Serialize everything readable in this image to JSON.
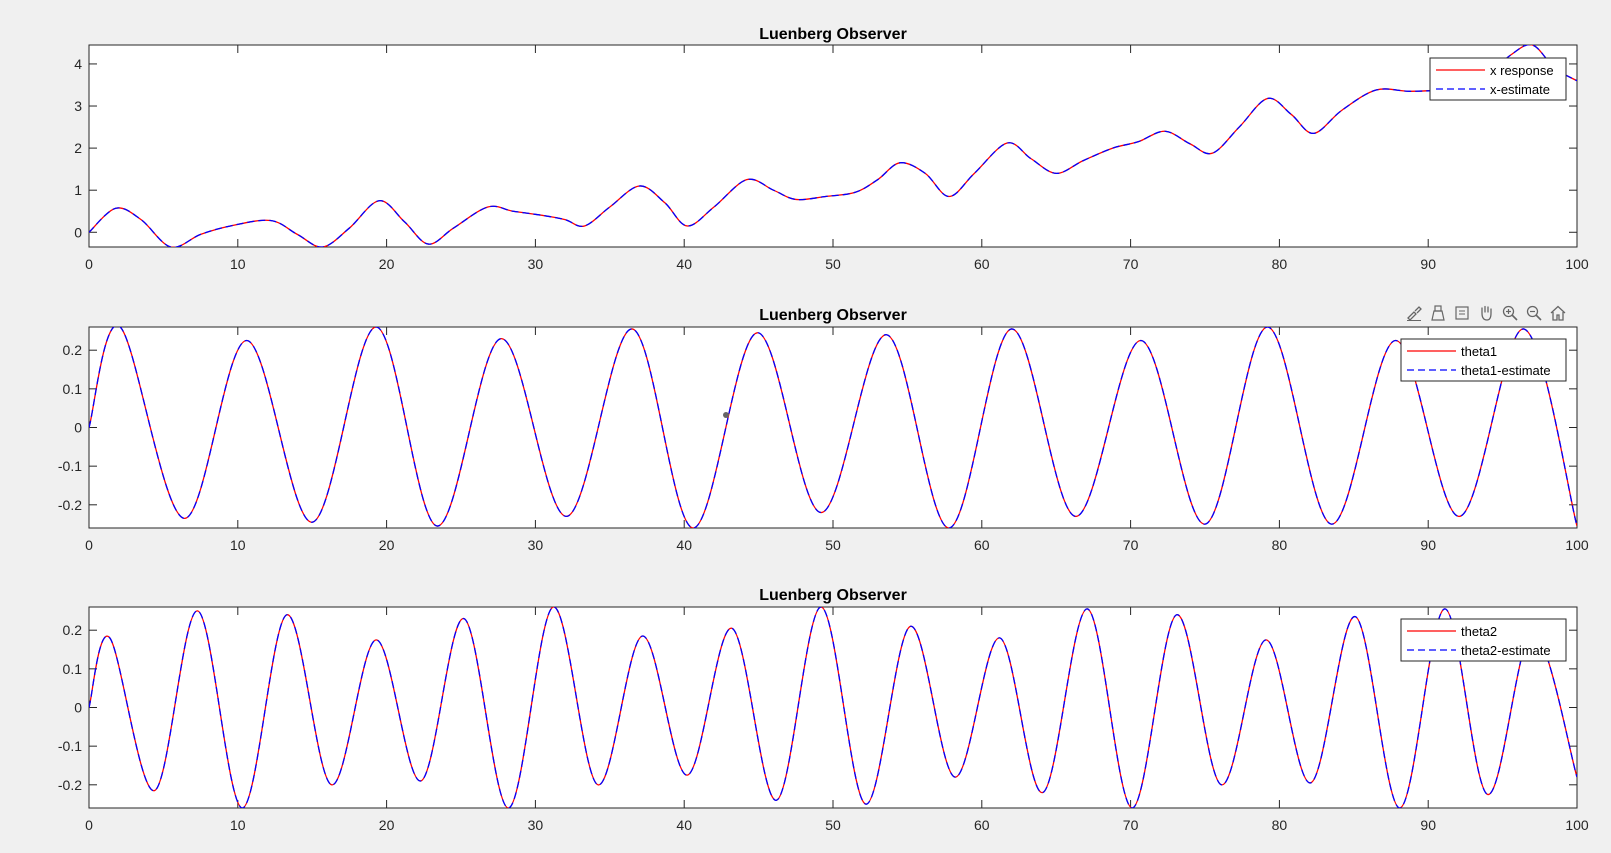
{
  "chart_data": [
    {
      "type": "line",
      "title": "Luenberg Observer",
      "xlim": [
        0,
        100
      ],
      "ylim": [
        -0.35,
        4.45
      ],
      "xticks": [
        0,
        10,
        20,
        30,
        40,
        50,
        60,
        70,
        80,
        90,
        100
      ],
      "yticks": [
        0,
        1,
        2,
        3,
        4
      ],
      "ytick_labels": [
        "0",
        "1",
        "2",
        "3",
        "4"
      ],
      "legend_position": "top-right",
      "grid": false,
      "series": [
        {
          "name": "x response",
          "color": "#ff0000",
          "style": "solid",
          "x": [
            0,
            1.8,
            3.5,
            5.5,
            7.5,
            9.5,
            12.2,
            14,
            15.7,
            17.5,
            19.5,
            21.2,
            22.8,
            24.5,
            26.8,
            28.5,
            30.5,
            32,
            33.3,
            35,
            37,
            38.7,
            40.2,
            42,
            44.2,
            46,
            47.5,
            49.5,
            51.5,
            53,
            54.5,
            56.2,
            57.8,
            59.5,
            61.7,
            63.3,
            65,
            66.8,
            68.8,
            70.5,
            72.3,
            74,
            75.5,
            77.3,
            79.2,
            80.8,
            82.3,
            84.2,
            86.5,
            88.8,
            91.2,
            93.5,
            95.5,
            97,
            98.5,
            100
          ],
          "y": [
            0,
            0.57,
            0.3,
            -0.35,
            -0.05,
            0.15,
            0.28,
            -0.05,
            -0.35,
            0.1,
            0.75,
            0.25,
            -0.28,
            0.1,
            0.6,
            0.5,
            0.4,
            0.3,
            0.15,
            0.6,
            1.1,
            0.7,
            0.15,
            0.6,
            1.25,
            1.0,
            0.78,
            0.85,
            0.95,
            1.25,
            1.65,
            1.4,
            0.85,
            1.4,
            2.12,
            1.75,
            1.4,
            1.7,
            2.0,
            2.15,
            2.4,
            2.1,
            1.88,
            2.5,
            3.18,
            2.8,
            2.35,
            2.9,
            3.38,
            3.35,
            3.4,
            3.6,
            4.2,
            4.45,
            3.9,
            3.6
          ]
        },
        {
          "name": "x-estimate",
          "color": "#0000ff",
          "style": "dashed",
          "x": [
            0,
            1.8,
            3.5,
            5.5,
            7.5,
            9.5,
            12.2,
            14,
            15.7,
            17.5,
            19.5,
            21.2,
            22.8,
            24.5,
            26.8,
            28.5,
            30.5,
            32,
            33.3,
            35,
            37,
            38.7,
            40.2,
            42,
            44.2,
            46,
            47.5,
            49.5,
            51.5,
            53,
            54.5,
            56.2,
            57.8,
            59.5,
            61.7,
            63.3,
            65,
            66.8,
            68.8,
            70.5,
            72.3,
            74,
            75.5,
            77.3,
            79.2,
            80.8,
            82.3,
            84.2,
            86.5,
            88.8,
            91.2,
            93.5,
            95.5,
            97,
            98.5,
            100
          ],
          "y": [
            0,
            0.57,
            0.3,
            -0.35,
            -0.05,
            0.15,
            0.28,
            -0.05,
            -0.35,
            0.1,
            0.75,
            0.25,
            -0.28,
            0.1,
            0.6,
            0.5,
            0.4,
            0.3,
            0.15,
            0.6,
            1.1,
            0.7,
            0.15,
            0.6,
            1.25,
            1.0,
            0.78,
            0.85,
            0.95,
            1.25,
            1.65,
            1.4,
            0.85,
            1.4,
            2.12,
            1.75,
            1.4,
            1.7,
            2.0,
            2.15,
            2.4,
            2.1,
            1.88,
            2.5,
            3.18,
            2.8,
            2.35,
            2.9,
            3.38,
            3.35,
            3.4,
            3.6,
            4.2,
            4.45,
            3.9,
            3.6
          ]
        }
      ]
    },
    {
      "type": "line",
      "title": "Luenberg Observer",
      "xlim": [
        0,
        100
      ],
      "ylim": [
        -0.26,
        0.26
      ],
      "xticks": [
        0,
        10,
        20,
        30,
        40,
        50,
        60,
        70,
        80,
        90,
        100
      ],
      "yticks": [
        -0.2,
        -0.1,
        0,
        0.1,
        0.2
      ],
      "ytick_labels": [
        "-0.2",
        "-0.1",
        "0",
        "0.1",
        "0.2"
      ],
      "legend_position": "top-right",
      "grid": false,
      "series": [
        {
          "name": "theta1",
          "color": "#ff0000",
          "style": "solid",
          "x": [
            0,
            2.1,
            6.4,
            10.6,
            15.0,
            19.3,
            23.4,
            27.7,
            32.1,
            36.5,
            40.6,
            44.9,
            49.2,
            53.6,
            57.8,
            62.0,
            66.3,
            70.7,
            75.0,
            79.2,
            83.5,
            87.8,
            92.1,
            96.4,
            100
          ],
          "y": [
            0,
            0.26,
            -0.235,
            0.225,
            -0.245,
            0.26,
            -0.255,
            0.23,
            -0.23,
            0.255,
            -0.26,
            0.245,
            -0.22,
            0.24,
            -0.26,
            0.255,
            -0.23,
            0.225,
            -0.25,
            0.26,
            -0.25,
            0.225,
            -0.23,
            0.255,
            -0.255
          ]
        },
        {
          "name": "theta1-estimate",
          "color": "#0000ff",
          "style": "dashed",
          "x": [
            0,
            2.1,
            6.4,
            10.6,
            15.0,
            19.3,
            23.4,
            27.7,
            32.1,
            36.5,
            40.6,
            44.9,
            49.2,
            53.6,
            57.8,
            62.0,
            66.3,
            70.7,
            75.0,
            79.2,
            83.5,
            87.8,
            92.1,
            96.4,
            100
          ],
          "y": [
            0,
            0.26,
            -0.235,
            0.225,
            -0.245,
            0.26,
            -0.255,
            0.23,
            -0.23,
            0.255,
            -0.26,
            0.245,
            -0.22,
            0.24,
            -0.26,
            0.255,
            -0.23,
            0.225,
            -0.25,
            0.26,
            -0.25,
            0.225,
            -0.23,
            0.255,
            -0.255
          ]
        }
      ]
    },
    {
      "type": "line",
      "title": "Luenberg Observer",
      "xlim": [
        0,
        100
      ],
      "ylim": [
        -0.26,
        0.26
      ],
      "xticks": [
        0,
        10,
        20,
        30,
        40,
        50,
        60,
        70,
        80,
        90,
        100
      ],
      "yticks": [
        -0.2,
        -0.1,
        0,
        0.1,
        0.2
      ],
      "ytick_labels": [
        "-0.2",
        "-0.1",
        "0",
        "0.1",
        "0.2"
      ],
      "legend_position": "top-right",
      "grid": false,
      "series": [
        {
          "name": "theta2",
          "color": "#ff0000",
          "style": "solid",
          "x": [
            0,
            1.4,
            4.4,
            7.3,
            10.3,
            13.3,
            16.3,
            19.3,
            22.3,
            25.2,
            28.2,
            31.2,
            34.2,
            37.2,
            40.2,
            43.2,
            46.2,
            49.2,
            52.2,
            55.2,
            58.2,
            61.2,
            64.1,
            67.1,
            70.1,
            73.1,
            76.1,
            79.1,
            82.1,
            85.1,
            88.1,
            91.1,
            94.0,
            97.0,
            100
          ],
          "y": [
            0,
            0.18,
            -0.215,
            0.25,
            -0.26,
            0.24,
            -0.2,
            0.175,
            -0.19,
            0.23,
            -0.26,
            0.26,
            -0.2,
            0.185,
            -0.175,
            0.205,
            -0.24,
            0.26,
            -0.25,
            0.21,
            -0.18,
            0.18,
            -0.22,
            0.255,
            -0.26,
            0.24,
            -0.2,
            0.175,
            -0.195,
            0.235,
            -0.26,
            0.255,
            -0.225,
            0.195,
            -0.18
          ]
        },
        {
          "name": "theta2-estimate",
          "color": "#0000ff",
          "style": "dashed",
          "x": [
            0,
            1.4,
            4.4,
            7.3,
            10.3,
            13.3,
            16.3,
            19.3,
            22.3,
            25.2,
            28.2,
            31.2,
            34.2,
            37.2,
            40.2,
            43.2,
            46.2,
            49.2,
            52.2,
            55.2,
            58.2,
            61.2,
            64.1,
            67.1,
            70.1,
            73.1,
            76.1,
            79.1,
            82.1,
            85.1,
            88.1,
            91.1,
            94.0,
            97.0,
            100
          ],
          "y": [
            0,
            0.18,
            -0.215,
            0.25,
            -0.26,
            0.24,
            -0.2,
            0.175,
            -0.19,
            0.23,
            -0.26,
            0.26,
            -0.2,
            0.185,
            -0.175,
            0.205,
            -0.24,
            0.26,
            -0.25,
            0.21,
            -0.18,
            0.18,
            -0.22,
            0.255,
            -0.26,
            0.24,
            -0.2,
            0.175,
            -0.195,
            0.235,
            -0.26,
            0.255,
            -0.225,
            0.195,
            -0.18
          ]
        }
      ]
    }
  ],
  "toolbar": {
    "icons": [
      "brush-icon",
      "insert-legend-icon",
      "data-tips-icon",
      "pan-icon",
      "zoom-in-icon",
      "zoom-out-icon",
      "home-icon"
    ]
  }
}
